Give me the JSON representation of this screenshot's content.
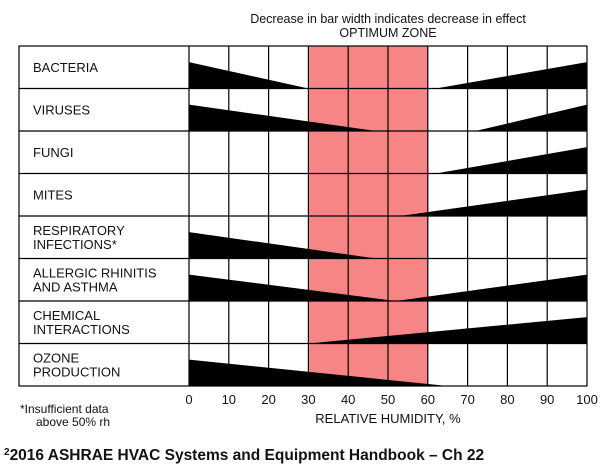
{
  "chart_data": {
    "type": "area",
    "header_line1": "Decrease in bar width indicates decrease in effect",
    "header_line2": "OPTIMUM ZONE",
    "xlabel": "RELATIVE HUMIDITY, %",
    "xlim": [
      0,
      100
    ],
    "x_ticks": [
      "0",
      "10",
      "20",
      "30",
      "40",
      "50",
      "60",
      "70",
      "80",
      "90",
      "100"
    ],
    "optimum_zone": [
      30,
      60
    ],
    "colors": {
      "optimum_zone": "#f88585",
      "bars": "#000000",
      "grid": "#000000"
    },
    "categories": [
      {
        "label": [
          "BACTERIA"
        ],
        "left": {
          "from": 0,
          "to": 30
        },
        "right": {
          "from": 62,
          "to": 100
        }
      },
      {
        "label": [
          "VIRUSES"
        ],
        "left": {
          "from": 0,
          "to": 47
        },
        "right": {
          "from": 72,
          "to": 100
        }
      },
      {
        "label": [
          "FUNGI"
        ],
        "left": null,
        "right": {
          "from": 62,
          "to": 100
        }
      },
      {
        "label": [
          "MITES"
        ],
        "left": null,
        "right": {
          "from": 53,
          "to": 100
        }
      },
      {
        "label": [
          "RESPIRATORY",
          "INFECTIONS*"
        ],
        "left": {
          "from": 0,
          "to": 47
        },
        "right": null
      },
      {
        "label": [
          "ALLERGIC RHINITIS",
          "AND ASTHMA"
        ],
        "left": {
          "from": 0,
          "to": 52
        },
        "right": {
          "from": 52,
          "to": 100
        }
      },
      {
        "label": [
          "CHEMICAL",
          "INTERACTIONS"
        ],
        "left": null,
        "right": {
          "from": 30,
          "to": 100
        }
      },
      {
        "label": [
          "OZONE",
          "PRODUCTION"
        ],
        "left": {
          "from": 0,
          "to": 65
        },
        "right": null
      }
    ],
    "footnote": [
      "*Insufficient data",
      "above 50% rh"
    ]
  },
  "citation": {
    "superscript": "2",
    "text": "2016 ASHRAE HVAC Systems and Equipment Handbook – Ch 22"
  }
}
